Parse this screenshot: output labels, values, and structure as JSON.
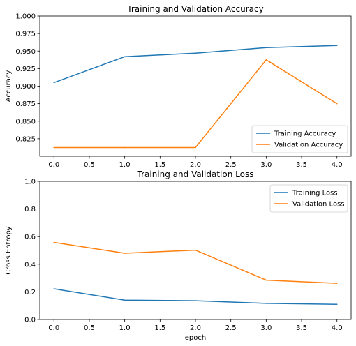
{
  "chart_data": [
    {
      "type": "line",
      "title": "Training and Validation Accuracy",
      "xlabel": "",
      "ylabel": "Accuracy",
      "x": [
        0,
        1,
        2,
        3,
        4
      ],
      "xlim": [
        -0.2,
        4.2
      ],
      "ylim": [
        0.8,
        1.0
      ],
      "xticks": [
        0.0,
        0.5,
        1.0,
        1.5,
        2.0,
        2.5,
        3.0,
        3.5,
        4.0
      ],
      "xtick_labels": [
        "0.0",
        "0.5",
        "1.0",
        "1.5",
        "2.0",
        "2.5",
        "3.0",
        "3.5",
        "4.0"
      ],
      "yticks": [
        0.825,
        0.85,
        0.875,
        0.9,
        0.925,
        0.95,
        0.975,
        1.0
      ],
      "ytick_labels": [
        "0.825",
        "0.850",
        "0.875",
        "0.900",
        "0.925",
        "0.950",
        "0.975",
        "1.000"
      ],
      "grid": false,
      "legend": "lower-right",
      "series": [
        {
          "name": "Training Accuracy",
          "color": "#1f77b4",
          "values": [
            0.905,
            0.942,
            0.947,
            0.955,
            0.958
          ]
        },
        {
          "name": "Validation Accuracy",
          "color": "#ff7f0e",
          "values": [
            0.8125,
            0.8125,
            0.8125,
            0.9375,
            0.875
          ]
        }
      ]
    },
    {
      "type": "line",
      "title": "Training and Validation Loss",
      "xlabel": "epoch",
      "ylabel": "Cross Entropy",
      "x": [
        0,
        1,
        2,
        3,
        4
      ],
      "xlim": [
        -0.2,
        4.2
      ],
      "ylim": [
        0.0,
        1.0
      ],
      "xticks": [
        0.0,
        0.5,
        1.0,
        1.5,
        2.0,
        2.5,
        3.0,
        3.5,
        4.0
      ],
      "xtick_labels": [
        "0.0",
        "0.5",
        "1.0",
        "1.5",
        "2.0",
        "2.5",
        "3.0",
        "3.5",
        "4.0"
      ],
      "yticks": [
        0.0,
        0.2,
        0.4,
        0.6,
        0.8,
        1.0
      ],
      "ytick_labels": [
        "0.0",
        "0.2",
        "0.4",
        "0.6",
        "0.8",
        "1.0"
      ],
      "grid": false,
      "legend": "upper-right",
      "series": [
        {
          "name": "Training Loss",
          "color": "#1f77b4",
          "values": [
            0.222,
            0.14,
            0.136,
            0.117,
            0.11
          ]
        },
        {
          "name": "Validation Loss",
          "color": "#ff7f0e",
          "values": [
            0.558,
            0.48,
            0.502,
            0.285,
            0.262
          ]
        }
      ]
    }
  ]
}
